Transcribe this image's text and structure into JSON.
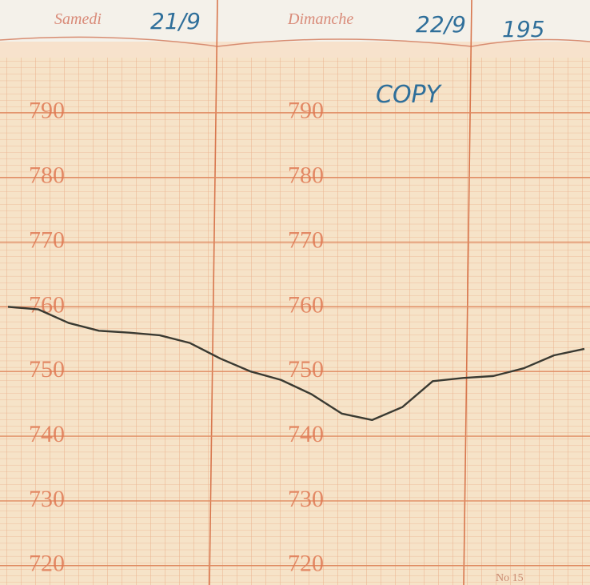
{
  "header": {
    "day_1": "Samedi",
    "date_1": "21/9",
    "day_2": "Dimanche",
    "date_2": "22/9",
    "year": "195",
    "stamp": "COPY",
    "sheet_number": "No 15"
  },
  "chart_data": {
    "type": "line",
    "categories": [
      null,
      null,
      null,
      null,
      null,
      null,
      null,
      null,
      null,
      null,
      null,
      null,
      null,
      null,
      null,
      null,
      null,
      null,
      null,
      null
    ],
    "series": [
      {
        "name": null,
        "color": "#3a3a32",
        "values": [
          760,
          759.6,
          757.5,
          756.3,
          756,
          755.6,
          754.4,
          752,
          750,
          748.7,
          746.5,
          743.5,
          742.5,
          744.5,
          748.5,
          749,
          749.3,
          750.5,
          752.5,
          753.5
        ]
      }
    ],
    "ylim": [
      717,
      800
    ],
    "yticks": [
      720,
      730,
      740,
      750,
      760,
      770,
      780,
      790
    ],
    "grid": true
  }
}
